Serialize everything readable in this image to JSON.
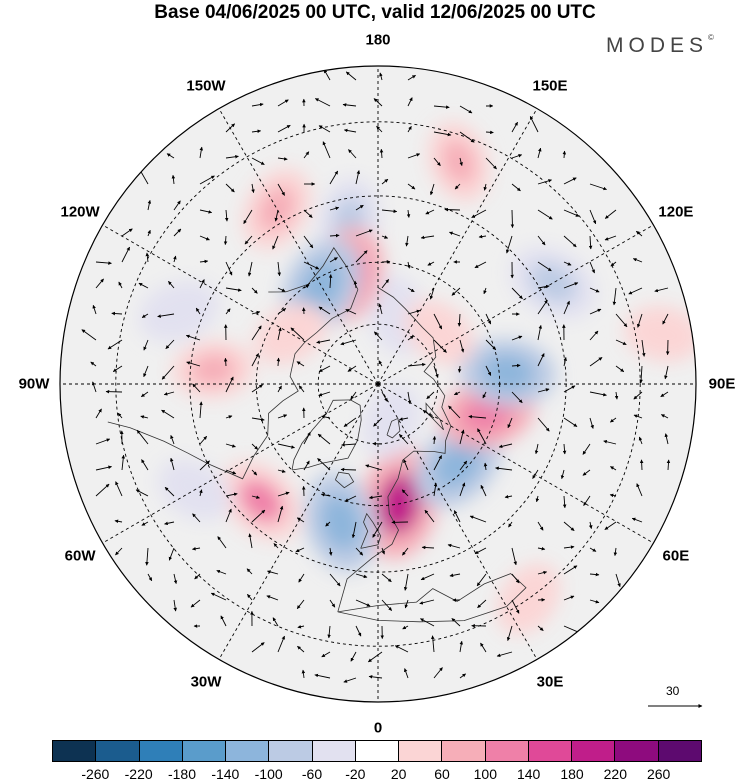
{
  "header": {
    "title": "Base 04/06/2025 00 UTC, valid 12/06/2025 00 UTC",
    "brand": "MODES",
    "brand_mark": "©"
  },
  "map": {
    "projection": "north-polar-stereographic",
    "longitude_labels": [
      {
        "id": "180",
        "text": "180",
        "lon": 180
      },
      {
        "id": "150e",
        "text": "150E",
        "lon": 150
      },
      {
        "id": "120e",
        "text": "120E",
        "lon": 120
      },
      {
        "id": "90e",
        "text": "90E",
        "lon": 90
      },
      {
        "id": "60e",
        "text": "60E",
        "lon": 60
      },
      {
        "id": "30e",
        "text": "30E",
        "lon": 30
      },
      {
        "id": "0",
        "text": "0",
        "lon": 0
      },
      {
        "id": "30w",
        "text": "30W",
        "lon": -30
      },
      {
        "id": "60w",
        "text": "60W",
        "lon": -60
      },
      {
        "id": "90w",
        "text": "90W",
        "lon": -90
      },
      {
        "id": "120w",
        "text": "120W",
        "lon": -120
      },
      {
        "id": "150w",
        "text": "150W",
        "lon": -150
      }
    ],
    "latitude_circles": [
      30,
      45,
      60,
      75
    ],
    "wind_reference_vector": "30",
    "anomaly_centers": [
      {
        "lon": 10,
        "lat": 60,
        "value": 180
      },
      {
        "lon": 45,
        "lat": 62,
        "value": -140
      },
      {
        "lon": 75,
        "lat": 62,
        "value": 120
      },
      {
        "lon": 95,
        "lat": 58,
        "value": -120
      },
      {
        "lon": 120,
        "lat": 42,
        "value": -100
      },
      {
        "lon": 160,
        "lat": 35,
        "value": 60
      },
      {
        "lon": 165,
        "lat": 72,
        "value": -60
      },
      {
        "lon": -170,
        "lat": 50,
        "value": -80
      },
      {
        "lon": -150,
        "lat": 42,
        "value": 80
      },
      {
        "lon": -165,
        "lat": 62,
        "value": 120
      },
      {
        "lon": -150,
        "lat": 62,
        "value": -140
      },
      {
        "lon": -15,
        "lat": 55,
        "value": -140
      },
      {
        "lon": -45,
        "lat": 50,
        "value": 100
      },
      {
        "lon": -95,
        "lat": 50,
        "value": 60
      },
      {
        "lon": -110,
        "lat": 40,
        "value": -60
      },
      {
        "lon": -60,
        "lat": 40,
        "value": -40
      },
      {
        "lon": 35,
        "lat": 30,
        "value": 40
      },
      {
        "lon": 100,
        "lat": 25,
        "value": 40
      },
      {
        "lon": 130,
        "lat": 70,
        "value": 40
      },
      {
        "lon": -120,
        "lat": 65,
        "value": 40
      },
      {
        "lon": 20,
        "lat": 80,
        "value": -40
      }
    ]
  },
  "colorbar": {
    "colors": [
      "#0d3252",
      "#1b5c8e",
      "#2f7fb8",
      "#5a9ccb",
      "#8db5dc",
      "#bccbe4",
      "#e2e1f0",
      "#ffffff",
      "#fbd5d5",
      "#f6aeb8",
      "#ef80a8",
      "#e04998",
      "#c01e8a",
      "#8e0b7e",
      "#5d0a6f"
    ],
    "ticks": [
      "-260",
      "-220",
      "-180",
      "-140",
      "-100",
      "-60",
      "-20",
      "20",
      "60",
      "100",
      "140",
      "180",
      "220",
      "260"
    ]
  }
}
